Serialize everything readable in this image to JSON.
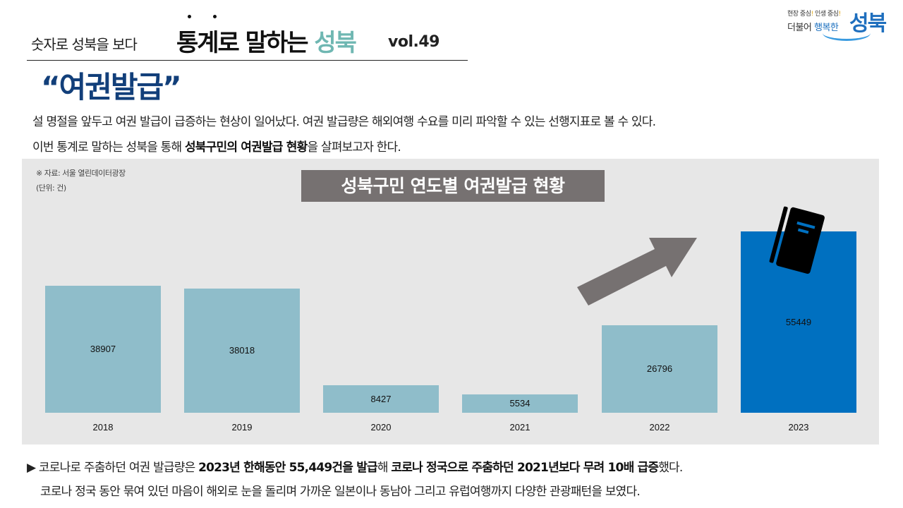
{
  "header": {
    "subtitle": "숫자로 성북을 보다",
    "title_main": "통계로 말하는",
    "title_accent": "성북",
    "volume": "vol.49",
    "accent_color": "#6fb7b2"
  },
  "logo": {
    "slogan_1": "현장 중심",
    "slogan_1_mark": "!",
    "slogan_2": " 인생 중심",
    "slogan_2_mark": "!",
    "prefix_1": "더불어 ",
    "prefix_2": "행복한",
    "brand": "성북",
    "brand_color": "#1f6fbe"
  },
  "topic": {
    "title": "“여권발급”",
    "color": "#123f7a"
  },
  "intro": {
    "line1": "설 명절을 앞두고 여권 발급이 급증하는 현상이 일어났다. 여권 발급량은 해외여행 수요를 미리 파악할 수 있는 선행지표로 볼 수 있다.",
    "line2_pre": "이번 통계로 말하는 성북을 통해 ",
    "line2_bold": "성북구민의 여권발급 현황",
    "line2_post": "을 살펴보고자 한다."
  },
  "chart": {
    "source": "※ 자료: 서울 열린데이터광장",
    "unit": "(단위: 건)",
    "title": "성북구민 연도별 여권발급 현황",
    "title_bg": "#767171",
    "panel_bg": "#e7e7e7",
    "bar_color": "#8fbdca",
    "highlight_color": "#0070c0",
    "icons": {
      "arrow": "trend-up-arrow-icon",
      "passport": "passport-book-icon"
    }
  },
  "chart_data": {
    "type": "bar",
    "title": "성북구민 연도별 여권발급 현황",
    "xlabel": "",
    "ylabel": "(단위: 건)",
    "source": "※ 자료: 서울 열린데이터광장",
    "categories": [
      "2018",
      "2019",
      "2020",
      "2021",
      "2022",
      "2023"
    ],
    "values": [
      38907,
      38018,
      8427,
      5534,
      26796,
      55449
    ],
    "value_labels": [
      "38907",
      "38018",
      "8427",
      "5534",
      "26796",
      "55449"
    ],
    "highlight_index": 5,
    "ylim": [
      0,
      60000
    ],
    "grid": false,
    "legend": "none",
    "data_labels": true
  },
  "footer": {
    "bullet": "▶",
    "line1_a": " 코로나로 주춤하던 여권 발급량은 ",
    "line1_b": "2023년 한해동안 55,449건을 발급",
    "line1_c": "해 ",
    "line1_d": "코로나 정국으로 주춤하던 2021년보다 무려 10배 급증",
    "line1_e": "했다.",
    "line2": "코로나 정국 동안 묶여 있던 마음이 해외로 눈을 돌리며 가까운 일본이나 동남아 그리고 유럽여행까지 다양한 관광패턴을 보였다."
  }
}
